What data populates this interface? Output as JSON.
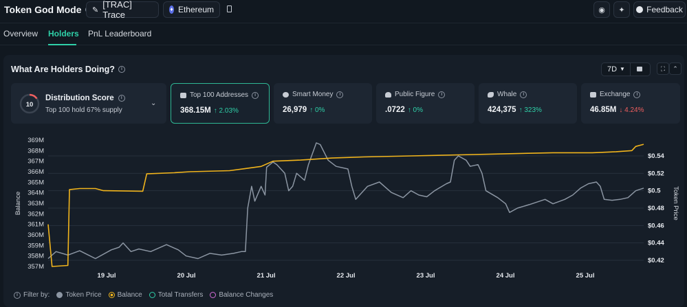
{
  "header": {
    "title": "Token God Mode",
    "token_label": "[TRAC] Trace",
    "chain_label": "Ethereum",
    "feedback_label": "Feedback"
  },
  "tabs": [
    {
      "label": "Overview",
      "active": false
    },
    {
      "label": "Holders",
      "active": true
    },
    {
      "label": "PnL Leaderboard",
      "active": false
    }
  ],
  "panel": {
    "title": "What Are Holders Doing?",
    "period": "7D"
  },
  "distribution": {
    "score": "10",
    "title": "Distribution Score",
    "subtitle": "Top 100 hold 67% supply"
  },
  "cards": [
    {
      "label": "Top 100 Addresses",
      "value": "368.15M",
      "change": "↑ 2.03%",
      "direction": "up",
      "icon": "wallet-icon"
    },
    {
      "label": "Smart Money",
      "value": "26,979",
      "change": "↑ 0%",
      "direction": "up",
      "icon": "brain-icon"
    },
    {
      "label": "Public Figure",
      "value": ".0722",
      "change": "↑ 0%",
      "direction": "up",
      "icon": "user-icon"
    },
    {
      "label": "Whale",
      "value": "424,375",
      "change": "↑ 323%",
      "direction": "up",
      "icon": "whale-icon"
    },
    {
      "label": "Exchange",
      "value": "46.85M",
      "change": "↓ 4.24%",
      "direction": "down",
      "icon": "bank-icon"
    }
  ],
  "legend": {
    "filter_label": "Filter by:",
    "items": [
      {
        "label": "Token Price",
        "color": "#8c96a3",
        "filled": true
      },
      {
        "label": "Balance",
        "color": "#f2b51c",
        "filled": true
      },
      {
        "label": "Total Transfers",
        "color": "#2fd0a8",
        "filled": false
      },
      {
        "label": "Balance Changes",
        "color": "#d46bd8",
        "filled": false
      }
    ]
  },
  "colors": {
    "accent": "#2fd0a8",
    "balance_line": "#f2b51c",
    "price_line": "#8c96a3",
    "down": "#ef5f5f"
  },
  "chart_data": {
    "type": "line",
    "ylabel_left": "Balance",
    "ylabel_right": "Token Price",
    "left_ticks": [
      "357M",
      "358M",
      "359M",
      "360M",
      "361M",
      "362M",
      "363M",
      "364M",
      "365M",
      "366M",
      "367M",
      "368M",
      "369M"
    ],
    "right_ticks": [
      "$0.42",
      "$0.44",
      "$0.46",
      "$0.48",
      "$0.5",
      "$0.52",
      "$0.54"
    ],
    "x_ticks": [
      "19 Jul",
      "20 Jul",
      "21 Jul",
      "22 Jul",
      "23 Jul",
      "24 Jul",
      "25 Jul"
    ],
    "ylim_left": [
      357,
      369
    ],
    "ylim_right": [
      0.42,
      0.54
    ],
    "x_range": [
      18.2,
      25.75
    ],
    "series": [
      {
        "name": "Balance",
        "color": "#f2b51c",
        "points": [
          [
            18.2,
            361.0
          ],
          [
            18.25,
            357.0
          ],
          [
            18.45,
            357.1
          ],
          [
            18.47,
            364.3
          ],
          [
            18.6,
            364.4
          ],
          [
            18.8,
            364.4
          ],
          [
            18.9,
            364.2
          ],
          [
            19.4,
            364.15
          ],
          [
            19.45,
            365.8
          ],
          [
            19.8,
            365.9
          ],
          [
            20.0,
            366.0
          ],
          [
            20.5,
            366.1
          ],
          [
            20.7,
            366.3
          ],
          [
            20.9,
            366.5
          ],
          [
            21.05,
            367.0
          ],
          [
            21.4,
            367.1
          ],
          [
            21.8,
            367.3
          ],
          [
            22.2,
            367.4
          ],
          [
            22.8,
            367.5
          ],
          [
            23.4,
            367.6
          ],
          [
            24.0,
            367.7
          ],
          [
            24.6,
            367.8
          ],
          [
            25.1,
            367.8
          ],
          [
            25.4,
            367.9
          ],
          [
            25.6,
            368.0
          ],
          [
            25.65,
            368.4
          ],
          [
            25.75,
            368.6
          ]
        ]
      },
      {
        "name": "Token Price",
        "color": "#8c96a3",
        "points": [
          [
            18.2,
            0.422
          ],
          [
            18.3,
            0.43
          ],
          [
            18.45,
            0.426
          ],
          [
            18.6,
            0.431
          ],
          [
            18.8,
            0.422
          ],
          [
            19.0,
            0.432
          ],
          [
            19.1,
            0.435
          ],
          [
            19.15,
            0.44
          ],
          [
            19.25,
            0.43
          ],
          [
            19.35,
            0.433
          ],
          [
            19.5,
            0.43
          ],
          [
            19.7,
            0.438
          ],
          [
            19.85,
            0.432
          ],
          [
            19.95,
            0.425
          ],
          [
            20.1,
            0.422
          ],
          [
            20.25,
            0.428
          ],
          [
            20.4,
            0.426
          ],
          [
            20.55,
            0.428
          ],
          [
            20.65,
            0.43
          ],
          [
            20.7,
            0.43
          ],
          [
            20.73,
            0.48
          ],
          [
            20.78,
            0.505
          ],
          [
            20.82,
            0.488
          ],
          [
            20.9,
            0.505
          ],
          [
            20.95,
            0.495
          ],
          [
            20.97,
            0.527
          ],
          [
            21.05,
            0.533
          ],
          [
            21.1,
            0.53
          ],
          [
            21.2,
            0.52
          ],
          [
            21.25,
            0.5
          ],
          [
            21.3,
            0.505
          ],
          [
            21.35,
            0.52
          ],
          [
            21.45,
            0.512
          ],
          [
            21.5,
            0.53
          ],
          [
            21.6,
            0.555
          ],
          [
            21.65,
            0.553
          ],
          [
            21.75,
            0.535
          ],
          [
            21.85,
            0.528
          ],
          [
            22.0,
            0.525
          ],
          [
            22.05,
            0.505
          ],
          [
            22.1,
            0.49
          ],
          [
            22.25,
            0.505
          ],
          [
            22.4,
            0.51
          ],
          [
            22.55,
            0.498
          ],
          [
            22.7,
            0.492
          ],
          [
            22.8,
            0.5
          ],
          [
            22.9,
            0.495
          ],
          [
            23.0,
            0.493
          ],
          [
            23.1,
            0.5
          ],
          [
            23.25,
            0.508
          ],
          [
            23.3,
            0.51
          ],
          [
            23.35,
            0.535
          ],
          [
            23.4,
            0.54
          ],
          [
            23.5,
            0.535
          ],
          [
            23.55,
            0.528
          ],
          [
            23.65,
            0.53
          ],
          [
            23.7,
            0.52
          ],
          [
            23.75,
            0.5
          ],
          [
            23.9,
            0.492
          ],
          [
            24.0,
            0.485
          ],
          [
            24.05,
            0.475
          ],
          [
            24.15,
            0.48
          ],
          [
            24.3,
            0.484
          ],
          [
            24.5,
            0.49
          ],
          [
            24.6,
            0.485
          ],
          [
            24.75,
            0.49
          ],
          [
            24.85,
            0.495
          ],
          [
            24.95,
            0.503
          ],
          [
            25.05,
            0.508
          ],
          [
            25.15,
            0.51
          ],
          [
            25.2,
            0.505
          ],
          [
            25.25,
            0.49
          ],
          [
            25.35,
            0.489
          ],
          [
            25.45,
            0.49
          ],
          [
            25.55,
            0.492
          ],
          [
            25.65,
            0.5
          ],
          [
            25.75,
            0.503
          ]
        ]
      }
    ]
  }
}
